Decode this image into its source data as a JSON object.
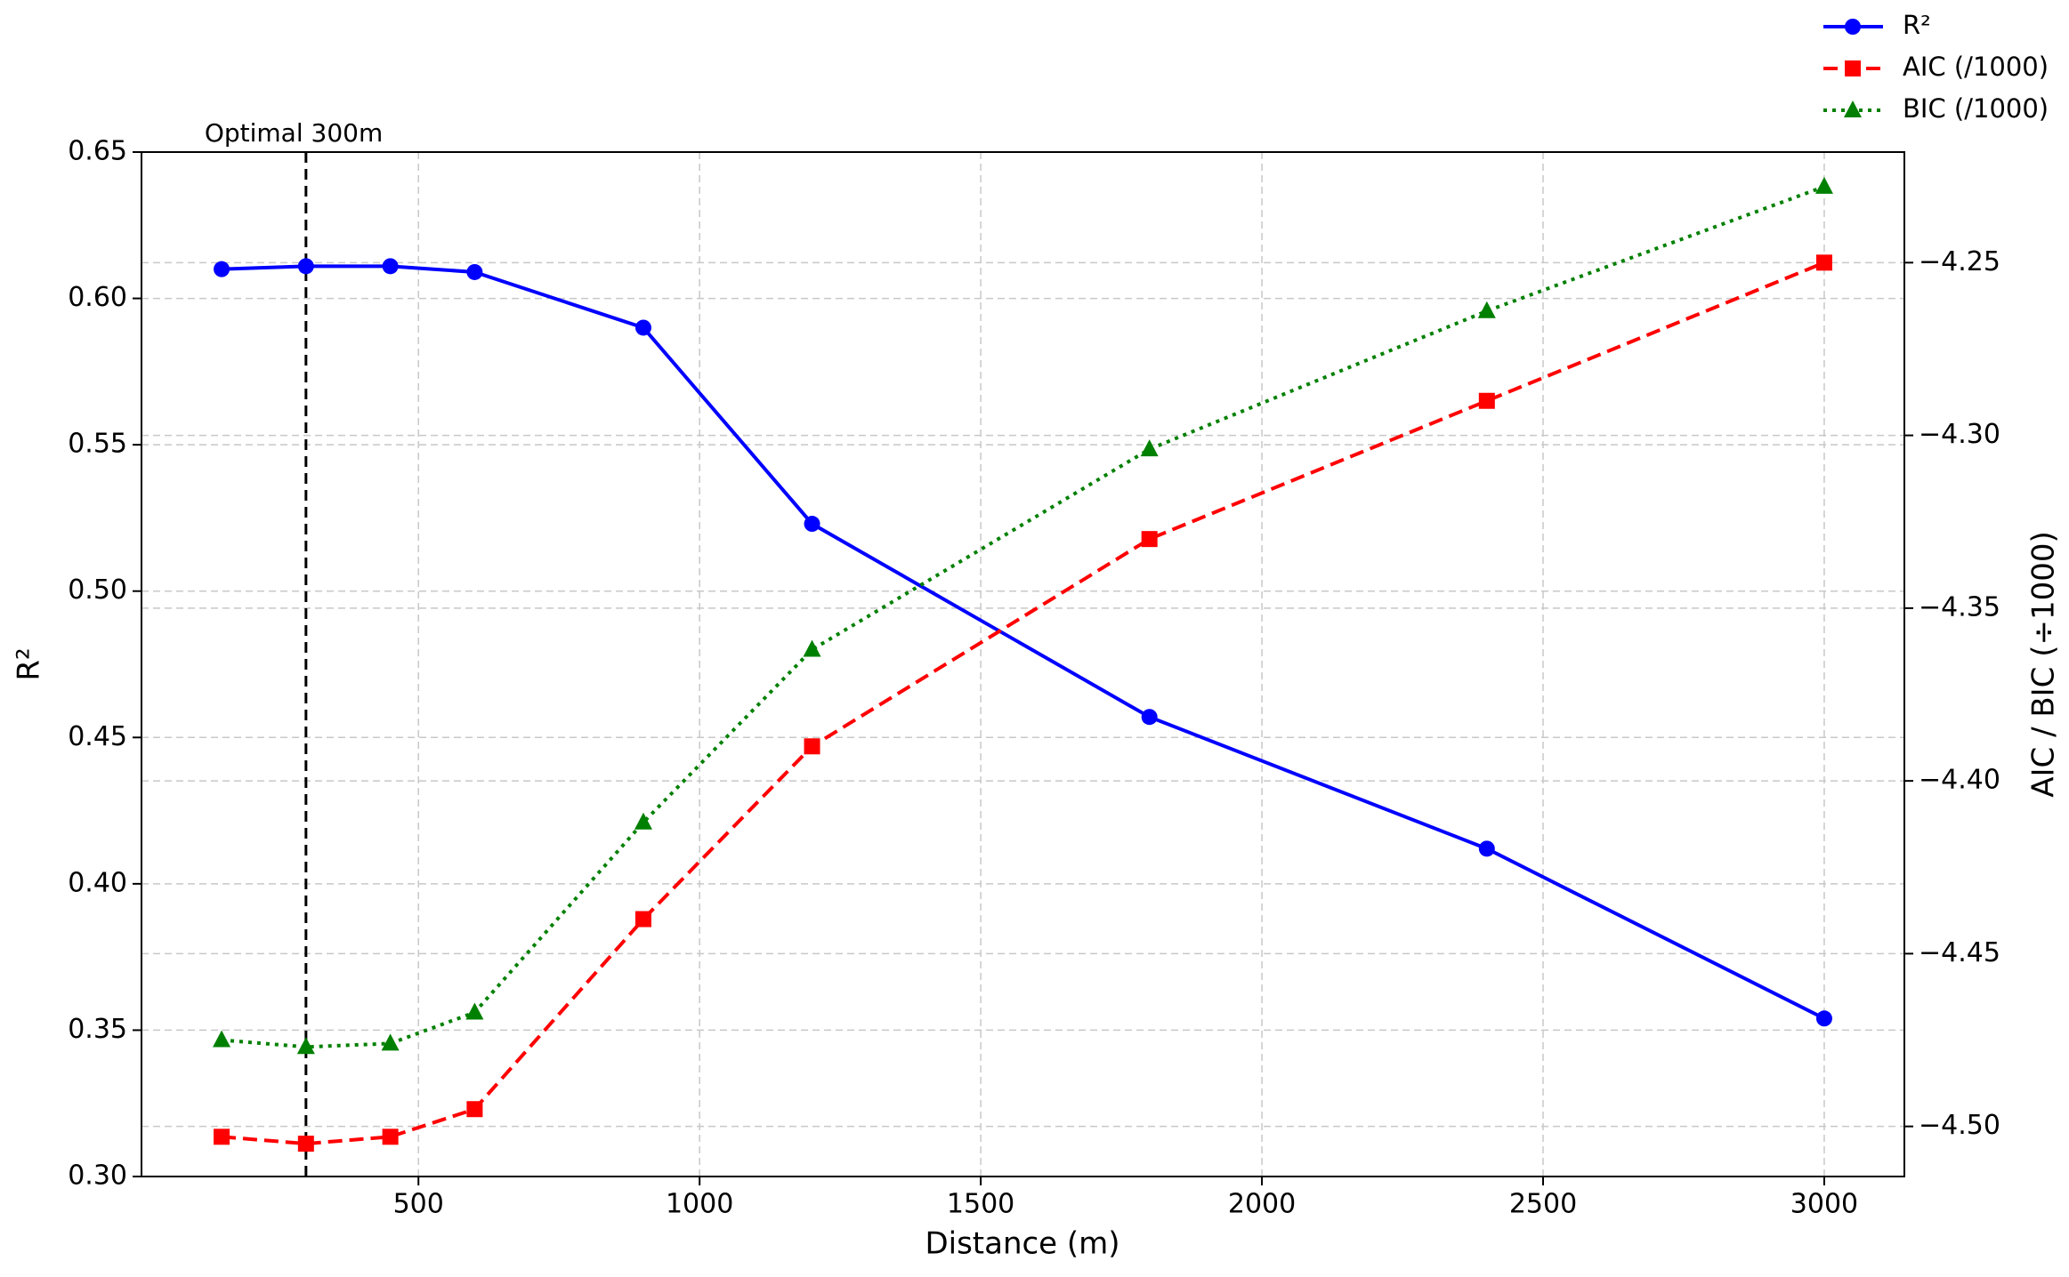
{
  "chart_data": {
    "type": "line",
    "xlabel": "Distance (m)",
    "ylabel": "R²",
    "y2label": "AIC / BIC (÷1000)",
    "x": [
      150,
      300,
      450,
      600,
      900,
      1200,
      1800,
      2400,
      3000
    ],
    "xlim": [
      7.5,
      3142.5
    ],
    "xticks": [
      500,
      1000,
      1500,
      2000,
      2500,
      3000
    ],
    "ylim": [
      0.3,
      0.65
    ],
    "yticks": [
      {
        "value": 0.3,
        "label": "0.30"
      },
      {
        "value": 0.35,
        "label": "0.35"
      },
      {
        "value": 0.4,
        "label": "0.40"
      },
      {
        "value": 0.45,
        "label": "0.45"
      },
      {
        "value": 0.5,
        "label": "0.50"
      },
      {
        "value": 0.55,
        "label": "0.55"
      },
      {
        "value": 0.6,
        "label": "0.60"
      },
      {
        "value": 0.65,
        "label": "0.65"
      }
    ],
    "y2lim": [
      -4.5145,
      -4.218
    ],
    "y2ticks": [
      {
        "value": -4.5,
        "label": "−4.50"
      },
      {
        "value": -4.45,
        "label": "−4.45"
      },
      {
        "value": -4.4,
        "label": "−4.40"
      },
      {
        "value": -4.35,
        "label": "−4.35"
      },
      {
        "value": -4.3,
        "label": "−4.30"
      },
      {
        "value": -4.25,
        "label": "−4.25"
      }
    ],
    "grid": true,
    "legend": "top-right",
    "series": [
      {
        "name": "R²",
        "color": "#0000ff",
        "marker": "circle",
        "linestyle": "solid",
        "axis": "y",
        "values": [
          0.61,
          0.611,
          0.611,
          0.609,
          0.59,
          0.523,
          0.457,
          0.412,
          0.354
        ]
      },
      {
        "name": "AIC (/1000)",
        "color": "#ff0000",
        "marker": "square",
        "linestyle": "dashed",
        "axis": "y2",
        "values": [
          -4.503,
          -4.505,
          -4.503,
          -4.495,
          -4.44,
          -4.39,
          -4.33,
          -4.29,
          -4.25
        ]
      },
      {
        "name": "BIC (/1000)",
        "color": "#008000",
        "marker": "triangle",
        "linestyle": "dotted",
        "axis": "y2",
        "values": [
          -4.475,
          -4.477,
          -4.476,
          -4.467,
          -4.412,
          -4.362,
          -4.304,
          -4.264,
          -4.228
        ]
      }
    ],
    "annotations": [
      {
        "text": "Optimal 300m",
        "x": 300
      }
    ]
  }
}
